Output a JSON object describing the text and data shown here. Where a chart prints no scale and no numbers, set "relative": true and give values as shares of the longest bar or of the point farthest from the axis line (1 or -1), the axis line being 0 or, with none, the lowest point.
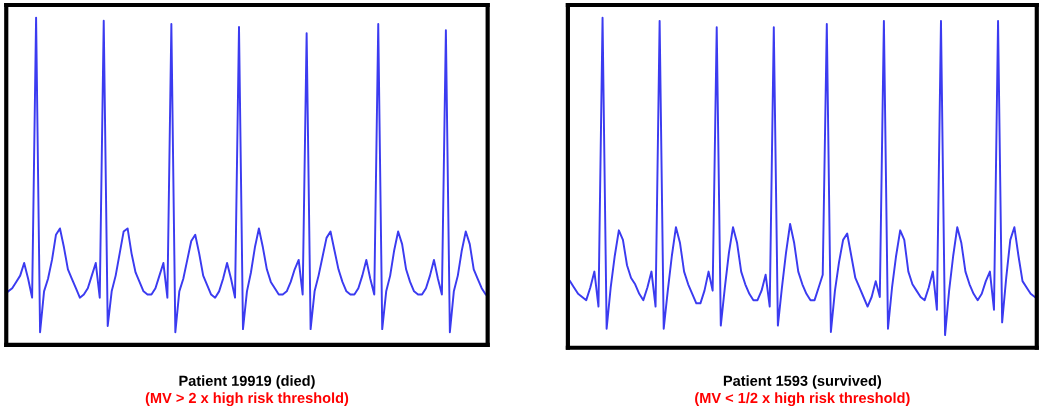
{
  "chart_data": [
    {
      "type": "line",
      "relative": true,
      "title": "Patient 19919 (died)",
      "subtitle": "(MV > 2 x high risk threshold)",
      "marker": "none",
      "line_style": "solid",
      "tick_labels": false,
      "categories": [
        null,
        null,
        null,
        null,
        null,
        null,
        null,
        null,
        null,
        null,
        null,
        null,
        null,
        null,
        null,
        null,
        null,
        null,
        null,
        null,
        null,
        null,
        null,
        null,
        null,
        null,
        null,
        null,
        null,
        null,
        null,
        null,
        null,
        null,
        null,
        null,
        null,
        null,
        null,
        null,
        null,
        null,
        null,
        null,
        null,
        null,
        null,
        null,
        null,
        null,
        null,
        null,
        null,
        null,
        null,
        null,
        null,
        null,
        null,
        null,
        null,
        null,
        null,
        null,
        null,
        null,
        null,
        null,
        null,
        null,
        null,
        null,
        null,
        null,
        null,
        null,
        null,
        null,
        null,
        null,
        null,
        null,
        null,
        null,
        null,
        null,
        null,
        null,
        null,
        null,
        null,
        null,
        null,
        null,
        null,
        null,
        null,
        null,
        null,
        null,
        null,
        null,
        null,
        null,
        null,
        null,
        null,
        null,
        null,
        null,
        null,
        null,
        null,
        null,
        null,
        null,
        null,
        null,
        null,
        null,
        null
      ],
      "series": [
        {
          "color": "#3b3bf0",
          "values": [
            0.13,
            0.14,
            0.16,
            0.18,
            0.22,
            0.17,
            0.11,
            1.0,
            0,
            0.13,
            0.17,
            0.23,
            0.31,
            0.33,
            0.27,
            0.2,
            0.17,
            0.14,
            0.11,
            0.12,
            0.14,
            0.18,
            0.22,
            0.11,
            0.99,
            0.02,
            0.13,
            0.18,
            0.25,
            0.32,
            0.33,
            0.25,
            0.19,
            0.16,
            0.13,
            0.12,
            0.12,
            0.14,
            0.18,
            0.22,
            0.11,
            0.98,
            0,
            0.13,
            0.17,
            0.23,
            0.29,
            0.31,
            0.25,
            0.18,
            0.15,
            0.12,
            0.11,
            0.13,
            0.17,
            0.22,
            0.17,
            0.11,
            0.97,
            0.01,
            0.13,
            0.19,
            0.27,
            0.33,
            0.27,
            0.2,
            0.16,
            0.14,
            0.12,
            0.12,
            0.13,
            0.16,
            0.2,
            0.23,
            0.12,
            0.95,
            0.01,
            0.13,
            0.18,
            0.24,
            0.3,
            0.32,
            0.26,
            0.2,
            0.16,
            0.13,
            0.12,
            0.12,
            0.14,
            0.18,
            0.23,
            0.17,
            0.12,
            0.98,
            0.01,
            0.13,
            0.18,
            0.26,
            0.32,
            0.28,
            0.2,
            0.16,
            0.13,
            0.12,
            0.12,
            0.14,
            0.18,
            0.23,
            0.17,
            0.12,
            0.96,
            0,
            0.13,
            0.18,
            0.26,
            0.32,
            0.28,
            0.2,
            0.17,
            0.14,
            0.12
          ]
        }
      ]
    },
    {
      "type": "line",
      "relative": true,
      "title": "Patient 1593 (survived)",
      "subtitle": "(MV < 1/2 x high risk threshold)",
      "marker": "none",
      "line_style": "solid",
      "tick_labels": false,
      "categories": [
        null,
        null,
        null,
        null,
        null,
        null,
        null,
        null,
        null,
        null,
        null,
        null,
        null,
        null,
        null,
        null,
        null,
        null,
        null,
        null,
        null,
        null,
        null,
        null,
        null,
        null,
        null,
        null,
        null,
        null,
        null,
        null,
        null,
        null,
        null,
        null,
        null,
        null,
        null,
        null,
        null,
        null,
        null,
        null,
        null,
        null,
        null,
        null,
        null,
        null,
        null,
        null,
        null,
        null,
        null,
        null,
        null,
        null,
        null,
        null,
        null,
        null,
        null,
        null,
        null,
        null,
        null,
        null,
        null,
        null,
        null,
        null,
        null,
        null,
        null,
        null,
        null,
        null,
        null,
        null,
        null,
        null,
        null,
        null,
        null,
        null,
        null,
        null,
        null,
        null,
        null,
        null,
        null,
        null,
        null,
        null,
        null,
        null,
        null,
        null,
        null,
        null,
        null,
        null,
        null,
        null,
        null,
        null,
        null,
        null,
        null,
        null,
        null,
        null,
        null
      ],
      "series": [
        {
          "color": "#3b3bf0",
          "values": [
            0.17,
            0.15,
            0.13,
            0.12,
            0.11,
            0.15,
            0.2,
            0.09,
            1.0,
            0.02,
            0.15,
            0.25,
            0.33,
            0.3,
            0.22,
            0.18,
            0.16,
            0.13,
            0.11,
            0.15,
            0.2,
            0.09,
            0.99,
            0.02,
            0.14,
            0.25,
            0.34,
            0.29,
            0.2,
            0.16,
            0.13,
            0.1,
            0.1,
            0.14,
            0.2,
            0.14,
            0.97,
            0.03,
            0.15,
            0.26,
            0.34,
            0.29,
            0.2,
            0.16,
            0.13,
            0.11,
            0.11,
            0.14,
            0.19,
            0.09,
            0.97,
            0.03,
            0.15,
            0.26,
            0.35,
            0.29,
            0.2,
            0.16,
            0.13,
            0.11,
            0.11,
            0.15,
            0.19,
            0.98,
            0.01,
            0.14,
            0.23,
            0.3,
            0.32,
            0.25,
            0.18,
            0.15,
            0.12,
            0.09,
            0.12,
            0.17,
            0.12,
            0.99,
            0.02,
            0.15,
            0.25,
            0.33,
            0.3,
            0.2,
            0.16,
            0.14,
            0.12,
            0.11,
            0.15,
            0.2,
            0.08,
            0.99,
            0,
            0.14,
            0.25,
            0.34,
            0.29,
            0.2,
            0.16,
            0.13,
            0.11,
            0.13,
            0.17,
            0.2,
            0.08,
            0.99,
            0.04,
            0.18,
            0.3,
            0.34,
            0.25,
            0.17,
            0.15,
            0.13,
            0.12
          ]
        }
      ]
    }
  ]
}
